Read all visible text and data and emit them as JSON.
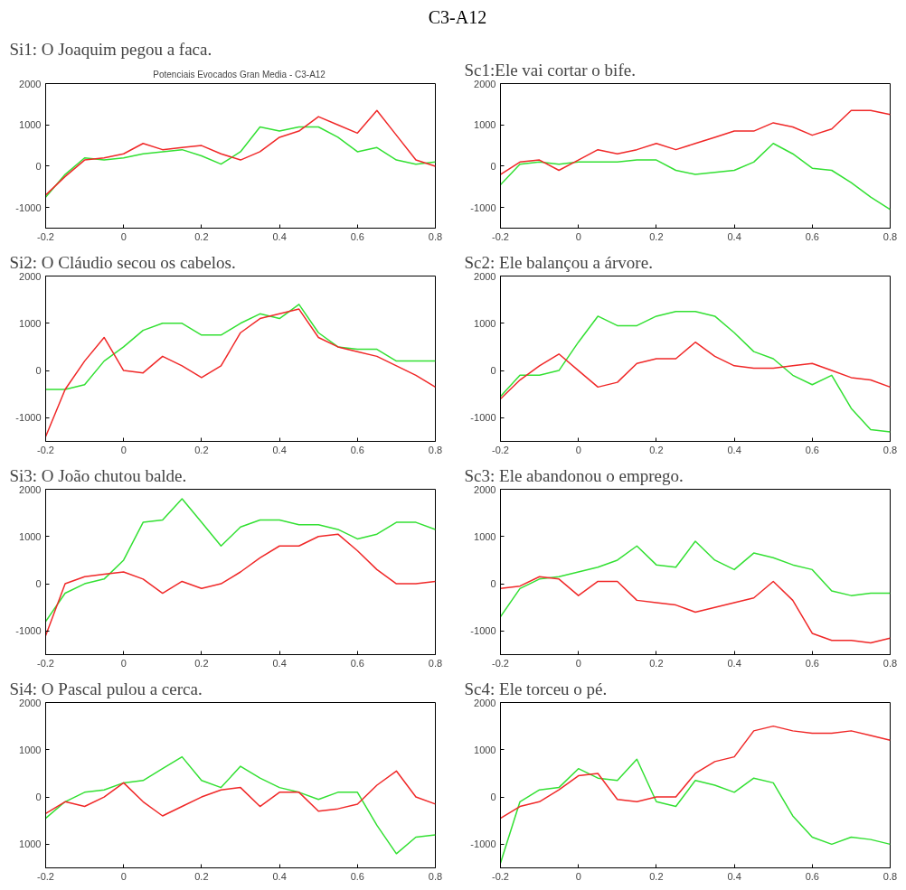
{
  "chart_data": [
    {
      "type": "line",
      "title": "Si1: O Joaquim pegou a faca.",
      "subtitle": "Potenciais Evocados Gran Media -  C3-A12",
      "annotations": [
        "C3-A12"
      ],
      "x": [
        -0.2,
        -0.15,
        -0.1,
        -0.05,
        0,
        0.05,
        0.1,
        0.15,
        0.2,
        0.25,
        0.3,
        0.35,
        0.4,
        0.45,
        0.5,
        0.55,
        0.6,
        0.65,
        0.7,
        0.75,
        0.8
      ],
      "series": [
        {
          "color": "#33e033",
          "values": [
            -750,
            -200,
            200,
            150,
            200,
            300,
            350,
            400,
            250,
            50,
            350,
            950,
            850,
            950,
            950,
            700,
            350,
            450,
            150,
            50,
            100
          ]
        },
        {
          "color": "#f02828",
          "values": [
            -700,
            -250,
            150,
            200,
            300,
            550,
            400,
            450,
            500,
            300,
            150,
            350,
            700,
            850,
            1200,
            1000,
            800,
            1350,
            750,
            150,
            0
          ]
        }
      ],
      "xlim": [
        -0.2,
        0.8
      ],
      "ylim": [
        -1500,
        2000
      ],
      "xticks": [
        -0.2,
        0,
        0.2,
        0.4,
        0.6,
        0.8
      ],
      "yticks": [
        -1000,
        0,
        1000,
        2000
      ],
      "line_style": "solid"
    },
    {
      "type": "line",
      "title": "Sc1:Ele vai cortar o bife.",
      "x": [
        -0.2,
        -0.15,
        -0.1,
        -0.05,
        0,
        0.05,
        0.1,
        0.15,
        0.2,
        0.25,
        0.3,
        0.35,
        0.4,
        0.45,
        0.5,
        0.55,
        0.6,
        0.65,
        0.7,
        0.75,
        0.8
      ],
      "series": [
        {
          "color": "#33e033",
          "values": [
            -450,
            50,
            100,
            50,
            100,
            100,
            100,
            150,
            150,
            -100,
            -200,
            -150,
            -100,
            100,
            550,
            300,
            -50,
            -100,
            -400,
            -750,
            -1050
          ]
        },
        {
          "color": "#f02828",
          "values": [
            -200,
            100,
            150,
            -100,
            150,
            400,
            300,
            400,
            550,
            400,
            550,
            700,
            850,
            850,
            1050,
            950,
            750,
            900,
            1350,
            1350,
            1250
          ]
        }
      ],
      "xlim": [
        -0.2,
        0.8
      ],
      "ylim": [
        -1500,
        2000
      ],
      "xticks": [
        -0.2,
        0,
        0.2,
        0.4,
        0.6,
        0.8
      ],
      "yticks": [
        -1000,
        0,
        1000,
        2000
      ],
      "line_style": "solid"
    },
    {
      "type": "line",
      "title": "Si2: O Cláudio secou os cabelos.",
      "x": [
        -0.2,
        -0.15,
        -0.1,
        -0.05,
        0,
        0.05,
        0.1,
        0.15,
        0.2,
        0.25,
        0.3,
        0.35,
        0.4,
        0.45,
        0.5,
        0.55,
        0.6,
        0.65,
        0.7,
        0.75,
        0.8
      ],
      "series": [
        {
          "color": "#33e033",
          "values": [
            -400,
            -400,
            -300,
            200,
            500,
            850,
            1000,
            1000,
            750,
            750,
            1000,
            1200,
            1100,
            1400,
            800,
            500,
            450,
            450,
            200,
            200,
            200
          ]
        },
        {
          "color": "#f02828",
          "values": [
            -1400,
            -400,
            200,
            700,
            0,
            -50,
            300,
            100,
            -150,
            100,
            800,
            1100,
            1200,
            1300,
            700,
            500,
            400,
            300,
            100,
            -100,
            -350
          ]
        }
      ],
      "xlim": [
        -0.2,
        0.8
      ],
      "ylim": [
        -1500,
        2000
      ],
      "xticks": [
        -0.2,
        0,
        0.2,
        0.4,
        0.6,
        0.8
      ],
      "yticks": [
        -1000,
        0,
        1000,
        2000
      ],
      "line_style": "solid"
    },
    {
      "type": "line",
      "title": "Sc2: Ele balançou a árvore.",
      "x": [
        -0.2,
        -0.15,
        -0.1,
        -0.05,
        0,
        0.05,
        0.1,
        0.15,
        0.2,
        0.25,
        0.3,
        0.35,
        0.4,
        0.45,
        0.5,
        0.55,
        0.6,
        0.65,
        0.7,
        0.75,
        0.8
      ],
      "series": [
        {
          "color": "#33e033",
          "values": [
            -550,
            -100,
            -100,
            0,
            600,
            1150,
            950,
            950,
            1150,
            1250,
            1250,
            1150,
            800,
            400,
            250,
            -100,
            -300,
            -100,
            -800,
            -1250,
            -1300
          ]
        },
        {
          "color": "#f02828",
          "values": [
            -600,
            -200,
            100,
            350,
            0,
            -350,
            -250,
            150,
            250,
            250,
            600,
            300,
            100,
            50,
            50,
            100,
            150,
            0,
            -150,
            -200,
            -350
          ]
        }
      ],
      "xlim": [
        -0.2,
        0.8
      ],
      "ylim": [
        -1500,
        2000
      ],
      "xticks": [
        -0.2,
        0,
        0.2,
        0.4,
        0.6,
        0.8
      ],
      "yticks": [
        -1000,
        0,
        1000,
        2000
      ],
      "line_style": "solid"
    },
    {
      "type": "line",
      "title": "Si3: O João chutou balde.",
      "x": [
        -0.2,
        -0.15,
        -0.1,
        -0.05,
        0,
        0.05,
        0.1,
        0.15,
        0.2,
        0.25,
        0.3,
        0.35,
        0.4,
        0.45,
        0.5,
        0.55,
        0.6,
        0.65,
        0.7,
        0.75,
        0.8
      ],
      "series": [
        {
          "color": "#33e033",
          "values": [
            -800,
            -200,
            0,
            100,
            500,
            1300,
            1350,
            1800,
            1300,
            800,
            1200,
            1350,
            1350,
            1250,
            1250,
            1150,
            950,
            1050,
            1300,
            1300,
            1150
          ]
        },
        {
          "color": "#f02828",
          "values": [
            -1100,
            0,
            150,
            200,
            250,
            100,
            -200,
            50,
            -100,
            0,
            250,
            550,
            800,
            800,
            1000,
            1050,
            700,
            300,
            0,
            0,
            50
          ]
        }
      ],
      "xlim": [
        -0.2,
        0.8
      ],
      "ylim": [
        -1500,
        2000
      ],
      "xticks": [
        -0.2,
        0,
        0.2,
        0.4,
        0.6,
        0.8
      ],
      "yticks": [
        -1000,
        0,
        1000,
        2000
      ],
      "line_style": "solid"
    },
    {
      "type": "line",
      "title": "Sc3: Ele abandonou o emprego.",
      "x": [
        -0.2,
        -0.15,
        -0.1,
        -0.05,
        0,
        0.05,
        0.1,
        0.15,
        0.2,
        0.25,
        0.3,
        0.35,
        0.4,
        0.45,
        0.5,
        0.55,
        0.6,
        0.65,
        0.7,
        0.75,
        0.8
      ],
      "series": [
        {
          "color": "#33e033",
          "values": [
            -700,
            -100,
            100,
            150,
            250,
            350,
            500,
            800,
            400,
            350,
            900,
            500,
            300,
            650,
            550,
            400,
            300,
            -150,
            -250,
            -200,
            -200
          ]
        },
        {
          "color": "#f02828",
          "values": [
            -100,
            -50,
            150,
            100,
            -250,
            50,
            50,
            -350,
            -400,
            -450,
            -600,
            -500,
            -400,
            -300,
            50,
            -350,
            -1050,
            -1200,
            -1200,
            -1250,
            -1150
          ]
        }
      ],
      "xlim": [
        -0.2,
        0.8
      ],
      "ylim": [
        -1500,
        2000
      ],
      "xticks": [
        -0.2,
        0,
        0.2,
        0.4,
        0.6,
        0.8
      ],
      "yticks": [
        -1000,
        0,
        1000,
        2000
      ],
      "line_style": "solid"
    },
    {
      "type": "line",
      "title": "Si4: O Pascal pulou a cerca.",
      "x": [
        -0.2,
        -0.15,
        -0.1,
        -0.05,
        0,
        0.05,
        0.1,
        0.15,
        0.2,
        0.25,
        0.3,
        0.35,
        0.4,
        0.45,
        0.5,
        0.55,
        0.6,
        0.65,
        0.7,
        0.75,
        0.8
      ],
      "series": [
        {
          "color": "#33e033",
          "values": [
            -450,
            -100,
            100,
            150,
            300,
            350,
            600,
            850,
            350,
            200,
            650,
            400,
            200,
            100,
            -50,
            100,
            100,
            -600,
            -1200,
            -850,
            -800
          ]
        },
        {
          "color": "#f02828",
          "values": [
            -350,
            -100,
            -200,
            0,
            300,
            -100,
            -400,
            -200,
            0,
            150,
            200,
            -200,
            100,
            100,
            -300,
            -250,
            -150,
            250,
            550,
            0,
            -150
          ]
        }
      ],
      "xlim": [
        -0.2,
        0.8
      ],
      "ylim": [
        -1500,
        2000
      ],
      "xticks": [
        -0.2,
        0,
        0.2,
        0.4,
        0.6,
        0.8
      ],
      "yticks": [
        {
          "value": -1000,
          "label": "1000"
        },
        0,
        1000,
        2000
      ],
      "line_style": "solid"
    },
    {
      "type": "line",
      "title": "Sc4: Ele torceu o pé.",
      "x": [
        -0.2,
        -0.15,
        -0.1,
        -0.05,
        0,
        0.05,
        0.1,
        0.15,
        0.2,
        0.25,
        0.3,
        0.35,
        0.4,
        0.45,
        0.5,
        0.55,
        0.6,
        0.65,
        0.7,
        0.75,
        0.8
      ],
      "series": [
        {
          "color": "#33e033",
          "values": [
            -1400,
            -100,
            150,
            200,
            600,
            400,
            350,
            800,
            -100,
            -200,
            350,
            250,
            100,
            400,
            300,
            -400,
            -850,
            -1000,
            -850,
            -900,
            -1000
          ]
        },
        {
          "color": "#f02828",
          "values": [
            -450,
            -200,
            -100,
            150,
            450,
            500,
            -50,
            -100,
            0,
            0,
            500,
            750,
            850,
            1400,
            1500,
            1400,
            1350,
            1350,
            1400,
            1300,
            1200
          ]
        }
      ],
      "xlim": [
        -0.2,
        0.8
      ],
      "ylim": [
        -1500,
        2000
      ],
      "xticks": [
        -0.2,
        0,
        0.2,
        0.4,
        0.6,
        0.8
      ],
      "yticks": [
        -1000,
        0,
        1000,
        2000
      ],
      "line_style": "solid"
    }
  ]
}
